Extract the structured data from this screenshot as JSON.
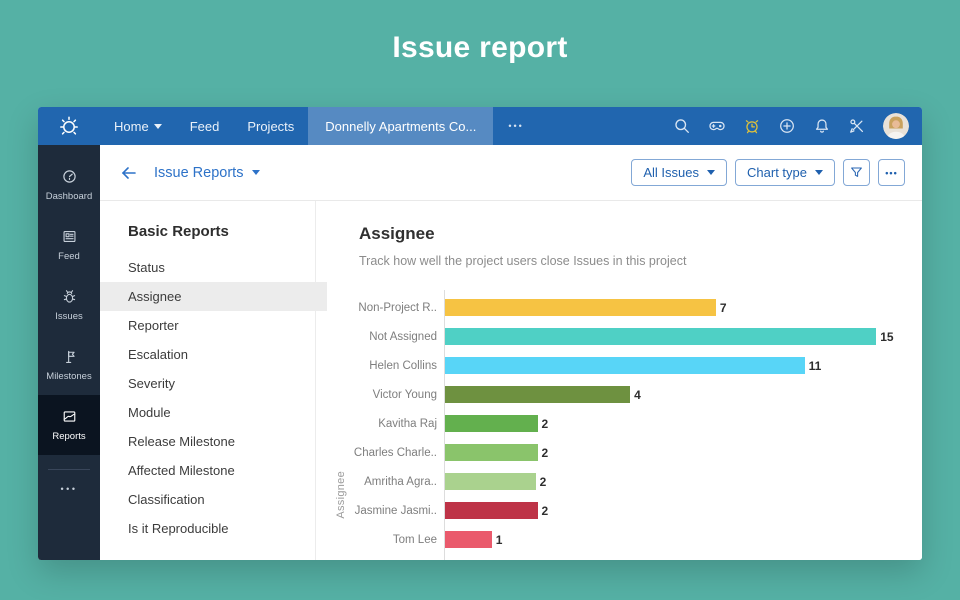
{
  "page": {
    "title": "Issue report",
    "background": "#55B1A5"
  },
  "topnav": {
    "logo_icon": "bug-logo",
    "items": [
      {
        "label": "Home",
        "has_caret": true
      },
      {
        "label": "Feed",
        "has_caret": false
      },
      {
        "label": "Projects",
        "has_caret": false
      }
    ],
    "active_tab": "Donnelly Apartments Co...",
    "more": "•••",
    "icon_names": [
      "search",
      "gamepad",
      "alarm-clock",
      "add",
      "bell",
      "tools"
    ],
    "avatar": "user-photo"
  },
  "sidebar": {
    "items": [
      {
        "label": "Dashboard",
        "icon": "dashboard",
        "active": false
      },
      {
        "label": "Feed",
        "icon": "feed",
        "active": false
      },
      {
        "label": "Issues",
        "icon": "bug",
        "active": false
      },
      {
        "label": "Milestones",
        "icon": "milestones",
        "active": false
      },
      {
        "label": "Reports",
        "icon": "reports",
        "active": true
      }
    ],
    "more": "•••"
  },
  "toolbar": {
    "back_icon": "back-arrow",
    "breadcrumb": "Issue Reports",
    "buttons": [
      {
        "label": "All Issues"
      },
      {
        "label": "Chart type"
      }
    ],
    "filter_icon": "filter",
    "more_label": "•••"
  },
  "reports_panel": {
    "heading": "Basic Reports",
    "items": [
      {
        "label": "Status",
        "selected": false
      },
      {
        "label": "Assignee",
        "selected": true
      },
      {
        "label": "Reporter",
        "selected": false
      },
      {
        "label": "Escalation",
        "selected": false
      },
      {
        "label": "Severity",
        "selected": false
      },
      {
        "label": "Module",
        "selected": false
      },
      {
        "label": "Release Milestone",
        "selected": false
      },
      {
        "label": "Affected Milestone",
        "selected": false
      },
      {
        "label": "Classification",
        "selected": false
      },
      {
        "label": "Is it Reproducible",
        "selected": false
      }
    ]
  },
  "chart": {
    "title": "Assignee",
    "subtitle": "Track how well the project users close Issues in this project"
  },
  "chart_data": {
    "type": "bar",
    "orientation": "horizontal",
    "title": "Assignee",
    "xlabel": "",
    "ylabel": "Assignee",
    "grid": false,
    "legend": false,
    "categories": [
      "Non-Project R..",
      "Not Assigned",
      "Helen Collins",
      "Victor Young",
      "Kavitha Raj",
      "Charles Charle..",
      "Amritha Agra..",
      "Jasmine Jasmi..",
      "Tom Lee"
    ],
    "values": [
      7,
      15,
      11,
      4,
      2,
      2,
      2,
      2,
      1
    ],
    "bar_colors": [
      "#F6C343",
      "#4FD0C5",
      "#58D5F7",
      "#6E9140",
      "#63B04E",
      "#8AC46B",
      "#AAD28E",
      "#BE3347",
      "#EA5A6C"
    ],
    "display_width_pct": [
      56.8,
      90.4,
      75.4,
      38.8,
      19.4,
      19.4,
      19.0,
      19.4,
      9.8
    ]
  }
}
